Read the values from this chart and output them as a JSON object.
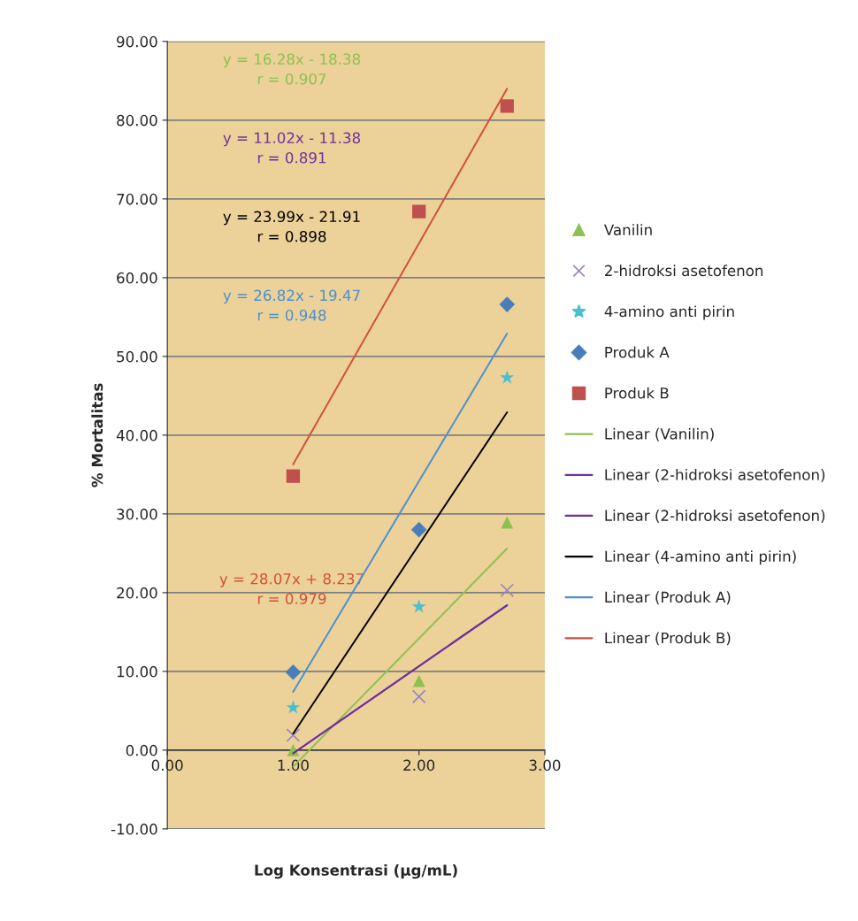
{
  "chart_data": {
    "type": "scatter",
    "xlabel": "Log Konsentrasi (µg/mL)",
    "ylabel": "% Mortalitas",
    "xlim": [
      0,
      3
    ],
    "xticks": [
      {
        "value": 0,
        "label": "0.00"
      },
      {
        "value": 1,
        "label": "1.00"
      },
      {
        "value": 2,
        "label": "2.00"
      },
      {
        "value": 3,
        "label": "3.00"
      }
    ],
    "ylim": [
      -10,
      90
    ],
    "yticks": [
      {
        "value": -10,
        "label": "-10.00"
      },
      {
        "value": 0,
        "label": "0.00"
      },
      {
        "value": 10,
        "label": "10.00"
      },
      {
        "value": 20,
        "label": "20.00"
      },
      {
        "value": 30,
        "label": "30.00"
      },
      {
        "value": 40,
        "label": "40.00"
      },
      {
        "value": 50,
        "label": "50.00"
      },
      {
        "value": 60,
        "label": "60.00"
      },
      {
        "value": 70,
        "label": "70.00"
      },
      {
        "value": 80,
        "label": "80.00"
      },
      {
        "value": 90,
        "label": "90.00"
      }
    ],
    "grid": "y",
    "legend": "right",
    "series": [
      {
        "name": "Vanilin",
        "marker": "triangle",
        "color": "#8cc152",
        "x": [
          1,
          2,
          2.7
        ],
        "values": [
          0,
          8.8,
          28.9
        ]
      },
      {
        "name": "2-hidroksi asetofenon",
        "marker": "cross",
        "color": "#9b86bd",
        "x": [
          1,
          2,
          2.7
        ],
        "values": [
          1.9,
          6.8,
          20.3
        ]
      },
      {
        "name": "4-amino anti pirin",
        "marker": "star",
        "color": "#4bbfcf",
        "x": [
          1,
          2,
          2.7
        ],
        "values": [
          5.4,
          18.2,
          47.3
        ]
      },
      {
        "name": "Produk A",
        "marker": "diamond",
        "color": "#4a7ebb",
        "x": [
          1,
          2,
          2.7
        ],
        "values": [
          9.9,
          28.0,
          56.6
        ]
      },
      {
        "name": "Produk B",
        "marker": "square",
        "color": "#c0504d",
        "x": [
          1,
          2,
          2.7
        ],
        "values": [
          34.8,
          68.4,
          81.8
        ]
      },
      {
        "name": "Linear (Vanilin)",
        "type": "line",
        "color": "#8cc152",
        "x": [
          1,
          2.7
        ],
        "values": [
          -2.1,
          25.6
        ]
      },
      {
        "name": "Linear (2-hidroksi asetofenon)",
        "type": "line",
        "color": "#7030a0",
        "x": [
          1,
          2.7
        ],
        "values": [
          -0.4,
          18.4
        ]
      },
      {
        "name": "Linear (2-hidroksi asetofenon)",
        "type": "line",
        "color": "#7030a0",
        "x": [
          1,
          2.7
        ],
        "values": [
          -0.4,
          18.4
        ]
      },
      {
        "name": "Linear (4-amino anti pirin)",
        "type": "line",
        "color": "#000000",
        "x": [
          1,
          2.7
        ],
        "values": [
          2.1,
          42.9
        ]
      },
      {
        "name": "Linear (Produk A)",
        "type": "line",
        "color": "#4a90d0",
        "x": [
          1,
          2.7
        ],
        "values": [
          7.4,
          52.9
        ]
      },
      {
        "name": "Linear (Produk B)",
        "type": "line",
        "color": "#d0503a",
        "x": [
          1,
          2.7
        ],
        "values": [
          36.3,
          84.0
        ]
      }
    ],
    "annotations": [
      "y = 16.28x - 18.38\nr = 0.907",
      "y = 11.02x - 11.38\nr = 0.891",
      "y = 23.99x - 21.91\nr = 0.898",
      "y = 26.82x - 19.47\nr = 0.948",
      "y = 28.07x + 8.237\nr = 0.979"
    ]
  }
}
